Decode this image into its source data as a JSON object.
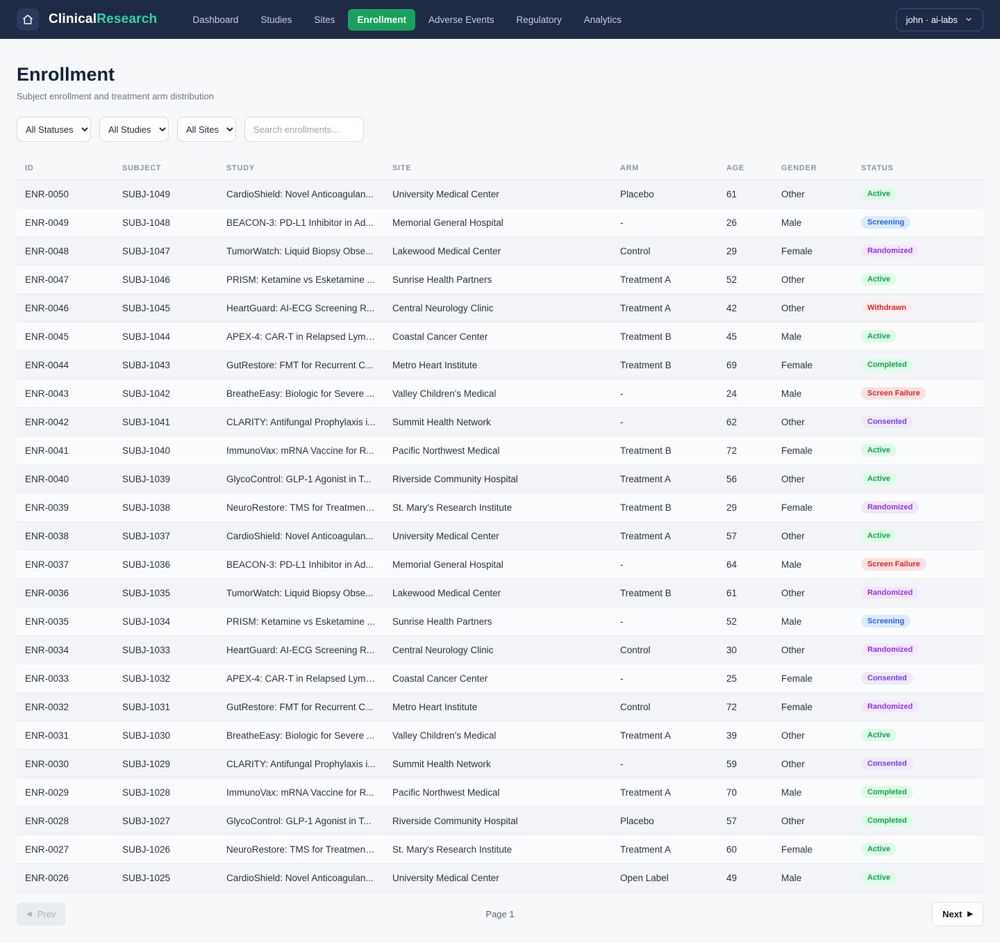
{
  "header": {
    "brand": {
      "primary": "Clinical",
      "accent": "Research",
      "accent_color": "#2fd6a4"
    },
    "nav": [
      {
        "label": "Dashboard",
        "active": false
      },
      {
        "label": "Studies",
        "active": false
      },
      {
        "label": "Sites",
        "active": false
      },
      {
        "label": "Enrollment",
        "active": true
      },
      {
        "label": "Adverse Events",
        "active": false
      },
      {
        "label": "Regulatory",
        "active": false
      },
      {
        "label": "Analytics",
        "active": false
      }
    ],
    "nav_active_color": "#18a05f",
    "user_menu": "john · ai-labs"
  },
  "page": {
    "title": "Enrollment",
    "subtitle": "Subject enrollment and treatment arm distribution"
  },
  "filters": {
    "status_select": "All Statuses",
    "study_select": "All Studies",
    "site_select": "All Sites",
    "search_placeholder": "Search enrollments..."
  },
  "table": {
    "columns": [
      "ID",
      "SUBJECT",
      "STUDY",
      "SITE",
      "ARM",
      "AGE",
      "GENDER",
      "STATUS"
    ],
    "rows": [
      {
        "id": "ENR-0050",
        "subject": "SUBJ-1049",
        "study": "CardioShield: Novel Anticoagulan...",
        "site": "University Medical Center",
        "arm": "Placebo",
        "age": "61",
        "gender": "Other",
        "status": "Active"
      },
      {
        "id": "ENR-0049",
        "subject": "SUBJ-1048",
        "study": "BEACON-3: PD-L1 Inhibitor in Ad...",
        "site": "Memorial General Hospital",
        "arm": "-",
        "age": "26",
        "gender": "Male",
        "status": "Screening"
      },
      {
        "id": "ENR-0048",
        "subject": "SUBJ-1047",
        "study": "TumorWatch: Liquid Biopsy Obse...",
        "site": "Lakewood Medical Center",
        "arm": "Control",
        "age": "29",
        "gender": "Female",
        "status": "Randomized"
      },
      {
        "id": "ENR-0047",
        "subject": "SUBJ-1046",
        "study": "PRISM: Ketamine vs Esketamine ...",
        "site": "Sunrise Health Partners",
        "arm": "Treatment A",
        "age": "52",
        "gender": "Other",
        "status": "Active"
      },
      {
        "id": "ENR-0046",
        "subject": "SUBJ-1045",
        "study": "HeartGuard: AI-ECG Screening R...",
        "site": "Central Neurology Clinic",
        "arm": "Treatment A",
        "age": "42",
        "gender": "Other",
        "status": "Withdrawn"
      },
      {
        "id": "ENR-0045",
        "subject": "SUBJ-1044",
        "study": "APEX-4: CAR-T in Relapsed Lymp...",
        "site": "Coastal Cancer Center",
        "arm": "Treatment B",
        "age": "45",
        "gender": "Male",
        "status": "Active"
      },
      {
        "id": "ENR-0044",
        "subject": "SUBJ-1043",
        "study": "GutRestore: FMT for Recurrent C...",
        "site": "Metro Heart Institute",
        "arm": "Treatment B",
        "age": "69",
        "gender": "Female",
        "status": "Completed"
      },
      {
        "id": "ENR-0043",
        "subject": "SUBJ-1042",
        "study": "BreatheEasy: Biologic for Severe ...",
        "site": "Valley Children's Medical",
        "arm": "-",
        "age": "24",
        "gender": "Male",
        "status": "Screen Failure"
      },
      {
        "id": "ENR-0042",
        "subject": "SUBJ-1041",
        "study": "CLARITY: Antifungal Prophylaxis i...",
        "site": "Summit Health Network",
        "arm": "-",
        "age": "62",
        "gender": "Other",
        "status": "Consented"
      },
      {
        "id": "ENR-0041",
        "subject": "SUBJ-1040",
        "study": "ImmunoVax: mRNA Vaccine for R...",
        "site": "Pacific Northwest Medical",
        "arm": "Treatment B",
        "age": "72",
        "gender": "Female",
        "status": "Active"
      },
      {
        "id": "ENR-0040",
        "subject": "SUBJ-1039",
        "study": "GlycoControl: GLP-1 Agonist in T...",
        "site": "Riverside Community Hospital",
        "arm": "Treatment A",
        "age": "56",
        "gender": "Other",
        "status": "Active"
      },
      {
        "id": "ENR-0039",
        "subject": "SUBJ-1038",
        "study": "NeuroRestore: TMS for Treatment...",
        "site": "St. Mary's Research Institute",
        "arm": "Treatment B",
        "age": "29",
        "gender": "Female",
        "status": "Randomized"
      },
      {
        "id": "ENR-0038",
        "subject": "SUBJ-1037",
        "study": "CardioShield: Novel Anticoagulan...",
        "site": "University Medical Center",
        "arm": "Treatment A",
        "age": "57",
        "gender": "Other",
        "status": "Active"
      },
      {
        "id": "ENR-0037",
        "subject": "SUBJ-1036",
        "study": "BEACON-3: PD-L1 Inhibitor in Ad...",
        "site": "Memorial General Hospital",
        "arm": "-",
        "age": "64",
        "gender": "Male",
        "status": "Screen Failure"
      },
      {
        "id": "ENR-0036",
        "subject": "SUBJ-1035",
        "study": "TumorWatch: Liquid Biopsy Obse...",
        "site": "Lakewood Medical Center",
        "arm": "Treatment B",
        "age": "61",
        "gender": "Other",
        "status": "Randomized"
      },
      {
        "id": "ENR-0035",
        "subject": "SUBJ-1034",
        "study": "PRISM: Ketamine vs Esketamine ...",
        "site": "Sunrise Health Partners",
        "arm": "-",
        "age": "52",
        "gender": "Male",
        "status": "Screening"
      },
      {
        "id": "ENR-0034",
        "subject": "SUBJ-1033",
        "study": "HeartGuard: AI-ECG Screening R...",
        "site": "Central Neurology Clinic",
        "arm": "Control",
        "age": "30",
        "gender": "Other",
        "status": "Randomized"
      },
      {
        "id": "ENR-0033",
        "subject": "SUBJ-1032",
        "study": "APEX-4: CAR-T in Relapsed Lymp...",
        "site": "Coastal Cancer Center",
        "arm": "-",
        "age": "25",
        "gender": "Female",
        "status": "Consented"
      },
      {
        "id": "ENR-0032",
        "subject": "SUBJ-1031",
        "study": "GutRestore: FMT for Recurrent C...",
        "site": "Metro Heart Institute",
        "arm": "Control",
        "age": "72",
        "gender": "Female",
        "status": "Randomized"
      },
      {
        "id": "ENR-0031",
        "subject": "SUBJ-1030",
        "study": "BreatheEasy: Biologic for Severe ...",
        "site": "Valley Children's Medical",
        "arm": "Treatment A",
        "age": "39",
        "gender": "Other",
        "status": "Active"
      },
      {
        "id": "ENR-0030",
        "subject": "SUBJ-1029",
        "study": "CLARITY: Antifungal Prophylaxis i...",
        "site": "Summit Health Network",
        "arm": "-",
        "age": "59",
        "gender": "Other",
        "status": "Consented"
      },
      {
        "id": "ENR-0029",
        "subject": "SUBJ-1028",
        "study": "ImmunoVax: mRNA Vaccine for R...",
        "site": "Pacific Northwest Medical",
        "arm": "Treatment A",
        "age": "70",
        "gender": "Male",
        "status": "Completed"
      },
      {
        "id": "ENR-0028",
        "subject": "SUBJ-1027",
        "study": "GlycoControl: GLP-1 Agonist in T...",
        "site": "Riverside Community Hospital",
        "arm": "Placebo",
        "age": "57",
        "gender": "Other",
        "status": "Completed"
      },
      {
        "id": "ENR-0027",
        "subject": "SUBJ-1026",
        "study": "NeuroRestore: TMS for Treatment...",
        "site": "St. Mary's Research Institute",
        "arm": "Treatment A",
        "age": "60",
        "gender": "Female",
        "status": "Active"
      },
      {
        "id": "ENR-0026",
        "subject": "SUBJ-1025",
        "study": "CardioShield: Novel Anticoagulan...",
        "site": "University Medical Center",
        "arm": "Open Label",
        "age": "49",
        "gender": "Male",
        "status": "Active"
      }
    ]
  },
  "status_styles": {
    "Active": {
      "color": "#16a34a",
      "bg": "#dcfce7"
    },
    "Screening": {
      "color": "#2563eb",
      "bg": "#dbeafe"
    },
    "Randomized": {
      "color": "#9333ea",
      "bg": "#f3e8ff"
    },
    "Withdrawn": {
      "color": "#dc2626",
      "bg": "#fdecec"
    },
    "Completed": {
      "color": "#16a34a",
      "bg": "#dcfce7"
    },
    "Screen Failure": {
      "color": "#dc2626",
      "bg": "#fee2e2"
    },
    "Consented": {
      "color": "#7c3aed",
      "bg": "#ede9fe"
    }
  },
  "icons": {
    "prev_triangle": "◀",
    "next_triangle": "▶"
  },
  "pagination": {
    "prev_label": "Prev",
    "page_indicator": "Page 1",
    "next_label": "Next"
  }
}
